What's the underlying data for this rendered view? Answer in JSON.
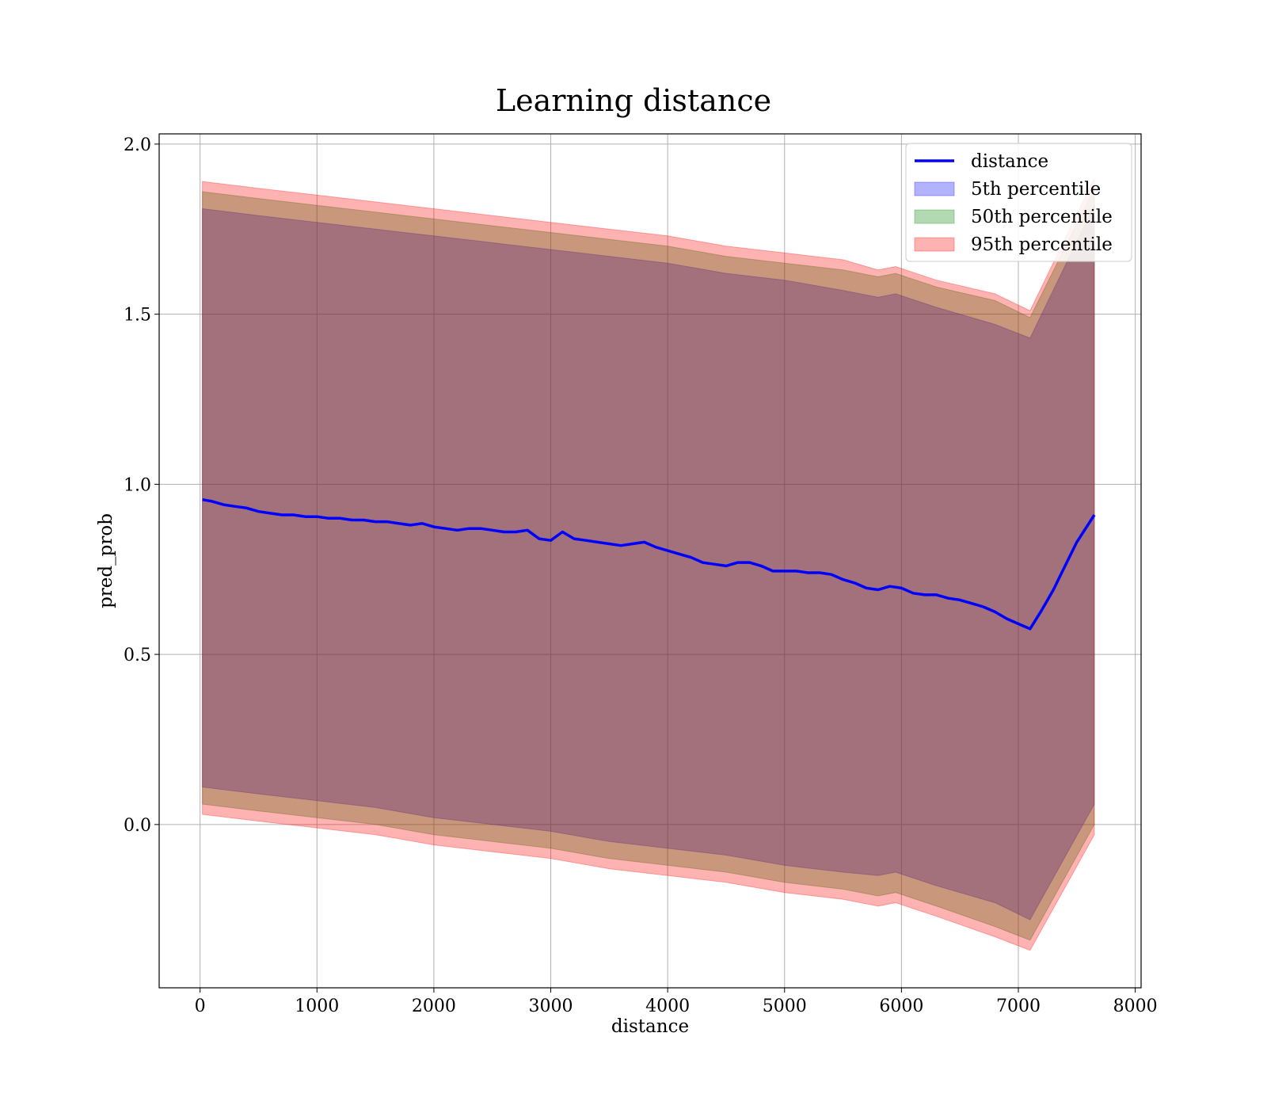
{
  "chart_data": {
    "type": "area",
    "title": "Learning distance",
    "xlabel": "distance",
    "ylabel": "pred_prob",
    "xlim": [
      -350,
      8050
    ],
    "ylim": [
      -0.48,
      2.03
    ],
    "x_ticks": [
      0,
      1000,
      2000,
      3000,
      4000,
      5000,
      6000,
      7000,
      8000
    ],
    "x_tick_labels": [
      "0",
      "1000",
      "2000",
      "3000",
      "4000",
      "5000",
      "6000",
      "7000",
      "8000"
    ],
    "y_ticks": [
      0.0,
      0.5,
      1.0,
      1.5,
      2.0
    ],
    "y_tick_labels": [
      "0.0",
      "0.5",
      "1.0",
      "1.5",
      "2.0"
    ],
    "grid": true,
    "legend_position": "top-right",
    "series": [
      {
        "name": "distance",
        "kind": "line",
        "color": "#0000ff",
        "x": [
          20,
          100,
          200,
          300,
          400,
          500,
          600,
          700,
          800,
          900,
          1000,
          1100,
          1200,
          1300,
          1400,
          1500,
          1600,
          1700,
          1800,
          1900,
          2000,
          2100,
          2200,
          2300,
          2400,
          2500,
          2600,
          2700,
          2800,
          2900,
          3000,
          3100,
          3200,
          3300,
          3400,
          3500,
          3600,
          3700,
          3800,
          3900,
          4000,
          4100,
          4200,
          4300,
          4400,
          4500,
          4600,
          4700,
          4800,
          4900,
          5000,
          5100,
          5200,
          5300,
          5400,
          5500,
          5600,
          5700,
          5800,
          5900,
          6000,
          6100,
          6200,
          6300,
          6400,
          6500,
          6600,
          6700,
          6800,
          6900,
          7000,
          7100,
          7200,
          7300,
          7400,
          7500,
          7650
        ],
        "y": [
          0.955,
          0.95,
          0.94,
          0.935,
          0.93,
          0.92,
          0.915,
          0.91,
          0.91,
          0.905,
          0.905,
          0.9,
          0.9,
          0.895,
          0.895,
          0.89,
          0.89,
          0.885,
          0.88,
          0.885,
          0.875,
          0.87,
          0.865,
          0.87,
          0.87,
          0.865,
          0.86,
          0.86,
          0.865,
          0.84,
          0.835,
          0.86,
          0.84,
          0.835,
          0.83,
          0.825,
          0.82,
          0.825,
          0.83,
          0.815,
          0.805,
          0.795,
          0.785,
          0.77,
          0.765,
          0.76,
          0.77,
          0.77,
          0.76,
          0.745,
          0.745,
          0.745,
          0.74,
          0.74,
          0.735,
          0.72,
          0.71,
          0.695,
          0.69,
          0.7,
          0.695,
          0.68,
          0.675,
          0.675,
          0.665,
          0.66,
          0.65,
          0.64,
          0.625,
          0.605,
          0.59,
          0.575,
          0.63,
          0.69,
          0.76,
          0.83,
          0.91
        ]
      },
      {
        "name": "5th percentile",
        "kind": "band",
        "color": "#0000ff",
        "opacity": 0.3,
        "x": [
          20,
          500,
          1000,
          1500,
          2000,
          2500,
          3000,
          3500,
          4000,
          4500,
          5000,
          5500,
          5800,
          5950,
          6300,
          6800,
          7100,
          7650
        ],
        "upper": [
          1.81,
          1.79,
          1.77,
          1.75,
          1.73,
          1.71,
          1.69,
          1.67,
          1.65,
          1.62,
          1.6,
          1.57,
          1.55,
          1.56,
          1.52,
          1.47,
          1.43,
          1.82
        ],
        "lower": [
          0.11,
          0.09,
          0.07,
          0.05,
          0.02,
          0.0,
          -0.02,
          -0.05,
          -0.07,
          -0.09,
          -0.12,
          -0.14,
          -0.15,
          -0.14,
          -0.18,
          -0.23,
          -0.28,
          0.06
        ]
      },
      {
        "name": "50th percentile",
        "kind": "band",
        "color": "#008000",
        "opacity": 0.3,
        "x": [
          20,
          500,
          1000,
          1500,
          2000,
          2500,
          3000,
          3500,
          4000,
          4500,
          5000,
          5500,
          5800,
          5950,
          6300,
          6800,
          7100,
          7650
        ],
        "upper": [
          1.86,
          1.84,
          1.82,
          1.8,
          1.78,
          1.76,
          1.74,
          1.72,
          1.7,
          1.67,
          1.65,
          1.63,
          1.61,
          1.62,
          1.58,
          1.54,
          1.49,
          1.87
        ],
        "lower": [
          0.06,
          0.04,
          0.02,
          0.0,
          -0.03,
          -0.05,
          -0.07,
          -0.1,
          -0.12,
          -0.14,
          -0.17,
          -0.19,
          -0.21,
          -0.2,
          -0.24,
          -0.3,
          -0.34,
          0.0
        ]
      },
      {
        "name": "95th percentile",
        "kind": "band",
        "color": "#ff0000",
        "opacity": 0.3,
        "x": [
          20,
          500,
          1000,
          1500,
          2000,
          2500,
          3000,
          3500,
          4000,
          4500,
          5000,
          5500,
          5800,
          5950,
          6300,
          6800,
          7100,
          7650
        ],
        "upper": [
          1.89,
          1.87,
          1.85,
          1.83,
          1.81,
          1.79,
          1.77,
          1.75,
          1.73,
          1.7,
          1.68,
          1.66,
          1.63,
          1.64,
          1.6,
          1.56,
          1.51,
          1.9
        ],
        "lower": [
          0.03,
          0.01,
          -0.01,
          -0.03,
          -0.06,
          -0.08,
          -0.1,
          -0.13,
          -0.15,
          -0.17,
          -0.2,
          -0.22,
          -0.24,
          -0.23,
          -0.27,
          -0.33,
          -0.37,
          -0.03
        ]
      }
    ],
    "legend": [
      {
        "label": "distance",
        "kind": "line",
        "color": "#0000ff"
      },
      {
        "label": "5th percentile",
        "kind": "patch",
        "color": "#0000ff"
      },
      {
        "label": "50th percentile",
        "kind": "patch",
        "color": "#008000"
      },
      {
        "label": "95th percentile",
        "kind": "patch",
        "color": "#ff0000"
      }
    ]
  }
}
